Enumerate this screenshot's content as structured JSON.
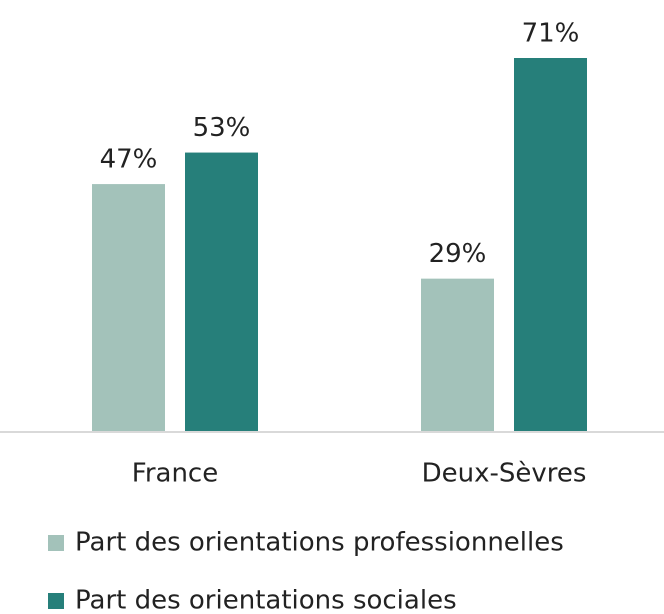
{
  "chart_data": {
    "type": "bar",
    "categories": [
      "France",
      "Deux-Sèvres"
    ],
    "series": [
      {
        "name": "Part des orientations professionnelles",
        "color": "#a3c2ba",
        "values": [
          47,
          29
        ],
        "value_labels": [
          "47%",
          "29%"
        ]
      },
      {
        "name": "Part des orientations sociales",
        "color": "#267f7a",
        "values": [
          53,
          71
        ],
        "value_labels": [
          "53%",
          "71%"
        ]
      }
    ]
  }
}
